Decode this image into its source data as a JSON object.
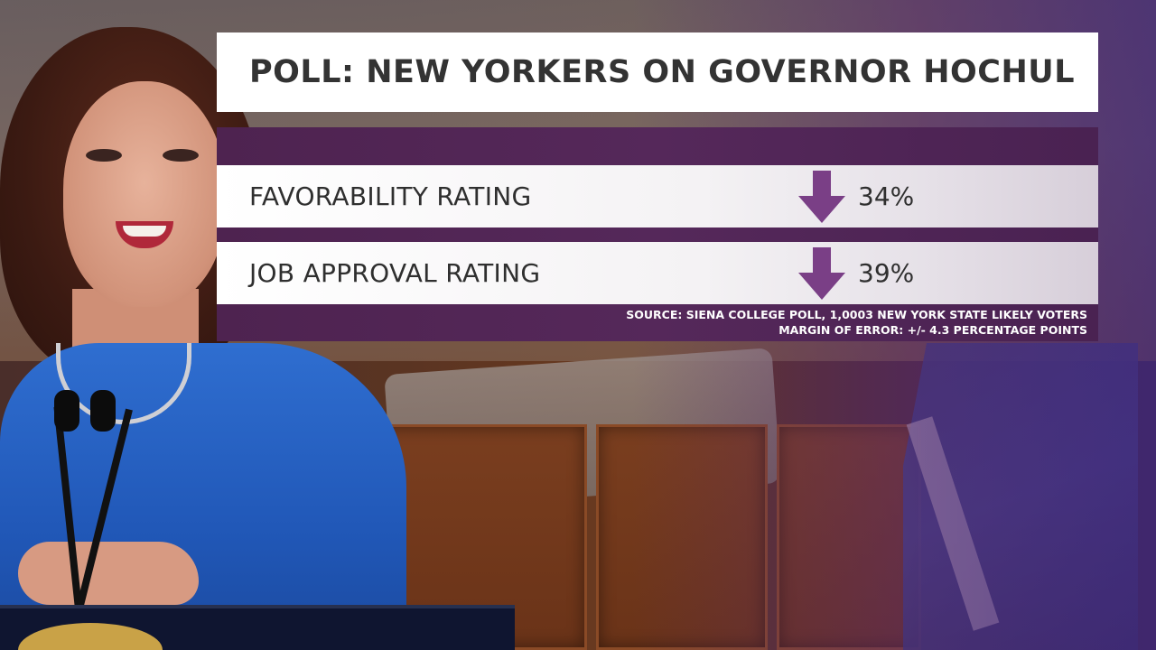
{
  "title": "POLL: NEW YORKERS ON GOVERNOR HOCHUL",
  "ratings": [
    {
      "label": "FAVORABILITY RATING",
      "value": "34%",
      "trend": "down"
    },
    {
      "label": "JOB APPROVAL RATING",
      "value": "39%",
      "trend": "down"
    }
  ],
  "source": {
    "line1": "SOURCE: SIENA COLLEGE POLL, 1,0003 NEW YORK STATE LIKELY VOTERS",
    "line2": "MARGIN OF ERROR: +/- 4.3 PERCENTAGE POINTS"
  },
  "colors": {
    "purple": "#55285a",
    "arrow": "#7a3f86",
    "title_text": "#333333"
  },
  "icons": {
    "trend": "arrow-down-icon"
  }
}
